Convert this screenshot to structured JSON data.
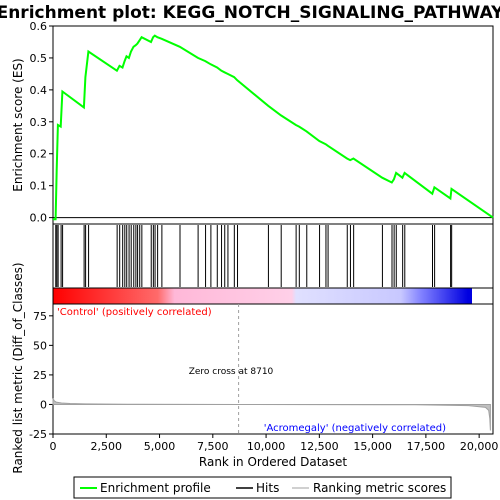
{
  "chart_data": {
    "type": "line",
    "title": "Enrichment plot: KEGG_NOTCH_SIGNALING_PATHWAY",
    "top_panel": {
      "ylabel": "Enrichment score (ES)",
      "ylim": [
        -0.02,
        0.6
      ],
      "yticks": [
        "0.0",
        "0.1",
        "0.2",
        "0.3",
        "0.4",
        "0.5",
        "0.6"
      ],
      "ytick_values": [
        0.0,
        0.1,
        0.2,
        0.3,
        0.4,
        0.5,
        0.6
      ],
      "series": [
        {
          "name": "Enrichment profile",
          "color": "#00ff00",
          "x": [
            0,
            120,
            175,
            230,
            360,
            440,
            1450,
            1520,
            1660,
            3000,
            3120,
            3260,
            3360,
            3450,
            3560,
            3660,
            3780,
            3880,
            3960,
            4060,
            4160,
            4600,
            4700,
            4780,
            4900,
            5100,
            5950,
            6800,
            7150,
            7400,
            7700,
            7900,
            8050,
            8200,
            8500,
            8650,
            10100,
            10700,
            11400,
            11550,
            11900,
            12500,
            12800,
            12900,
            13800,
            13950,
            14100,
            15450,
            15900,
            16000,
            16100,
            16400,
            16500,
            17800,
            17900,
            18650,
            18700,
            20650
          ],
          "y": [
            -0.005,
            -0.005,
            0.15,
            0.29,
            0.285,
            0.395,
            0.345,
            0.44,
            0.52,
            0.46,
            0.475,
            0.47,
            0.49,
            0.505,
            0.5,
            0.52,
            0.535,
            0.54,
            0.545,
            0.555,
            0.565,
            0.55,
            0.565,
            0.57,
            0.565,
            0.56,
            0.535,
            0.5,
            0.49,
            0.48,
            0.47,
            0.46,
            0.455,
            0.45,
            0.44,
            0.43,
            0.35,
            0.32,
            0.29,
            0.285,
            0.27,
            0.24,
            0.23,
            0.225,
            0.185,
            0.18,
            0.185,
            0.125,
            0.11,
            0.12,
            0.14,
            0.125,
            0.14,
            0.075,
            0.095,
            0.06,
            0.09,
            0.0
          ]
        }
      ]
    },
    "hits": {
      "name": "Hits",
      "positions": [
        130,
        180,
        240,
        380,
        450,
        1460,
        1530,
        1670,
        3010,
        3130,
        3270,
        3370,
        3460,
        3570,
        3670,
        3790,
        3890,
        3970,
        4070,
        4170,
        4610,
        4710,
        4790,
        4910,
        5110,
        5960,
        6810,
        7160,
        7410,
        7710,
        7910,
        8060,
        8210,
        8510,
        8660,
        10110,
        10710,
        11410,
        11560,
        11910,
        12510,
        12810,
        12910,
        13810,
        13960,
        14110,
        15460,
        15910,
        16010,
        16110,
        16410,
        16510,
        17810,
        17910,
        18660,
        18710
      ]
    },
    "bottom_panel": {
      "ylabel": "Ranked list metric (Diff_of_Classes)",
      "ylim": [
        -25,
        85
      ],
      "yticks": [
        "-25",
        "0",
        "25",
        "50",
        "75"
      ],
      "ytick_values": [
        -25,
        0,
        25,
        50,
        75
      ],
      "series_name": "Ranking metric scores",
      "x": [
        0,
        60,
        150,
        400,
        800,
        1500,
        2800,
        4000,
        8710,
        17000,
        19500,
        20300,
        20450,
        20500,
        20530
      ],
      "y": [
        5,
        3,
        2,
        1.2,
        0.8,
        0.5,
        0.3,
        0.15,
        0,
        -0.3,
        -1,
        -2.5,
        -5,
        -12,
        -22
      ]
    },
    "xlabel": "Rank in Ordered Dataset",
    "xlim": [
      0,
      20650
    ],
    "xticks": [
      "0",
      "2,500",
      "5,000",
      "7,500",
      "10,000",
      "12,500",
      "15,000",
      "17,500",
      "20,000"
    ],
    "xtick_values": [
      0,
      2500,
      5000,
      7500,
      10000,
      12500,
      15000,
      17500,
      20000
    ],
    "zero_cross": 8710,
    "annotations": {
      "zero_cross": "Zero cross at 8710",
      "positive": "'Control' (positively correlated)",
      "negative": "'Acromegaly' (negatively correlated)"
    },
    "colorbar_colors": [
      "#ff0000",
      "#ffc0e0",
      "#d8d8ff",
      "#0000ff"
    ],
    "legend": {
      "placement": "bottom",
      "items": [
        "Enrichment profile",
        "Hits",
        "Ranking metric scores"
      ]
    }
  }
}
